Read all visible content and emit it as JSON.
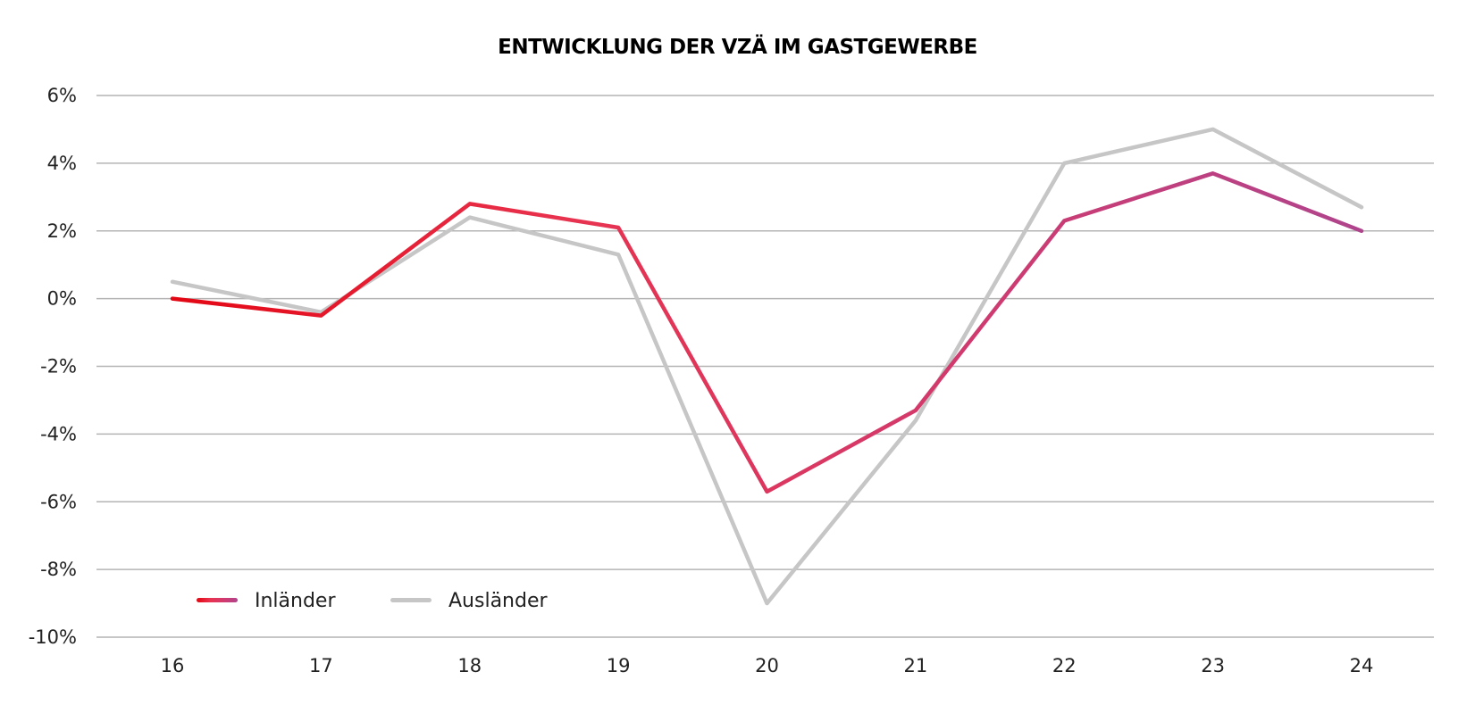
{
  "chart_data": {
    "type": "line",
    "title": "ENTWICKLUNG DER VZÄ IM GASTGEWERBE",
    "xlabel": "",
    "ylabel": "",
    "categories": [
      "16",
      "17",
      "18",
      "19",
      "20",
      "21",
      "22",
      "23",
      "24"
    ],
    "ylim": [
      -0.1,
      0.06
    ],
    "yticks": [
      0.06,
      0.04,
      0.02,
      0.0,
      -0.02,
      -0.04,
      -0.06,
      -0.08,
      -0.1
    ],
    "ytick_labels": [
      "6%",
      "4%",
      "2%",
      "0%",
      "-2%",
      "-4%",
      "-6%",
      "-8%",
      "-10%"
    ],
    "grid": "horizontal",
    "legend_position": "bottom-left",
    "series": [
      {
        "name": "Inländer",
        "values": [
          0.0,
          -0.005,
          0.028,
          0.021,
          -0.057,
          -0.033,
          0.023,
          0.037,
          0.02
        ],
        "color_gradient": [
          "#e30613",
          "#e8334f",
          "#d13a6e",
          "#b0448c"
        ]
      },
      {
        "name": "Ausländer",
        "values": [
          0.005,
          -0.004,
          0.024,
          0.013,
          -0.09,
          -0.036,
          0.04,
          0.05,
          0.027
        ],
        "color": "#c6c6c6"
      }
    ]
  }
}
